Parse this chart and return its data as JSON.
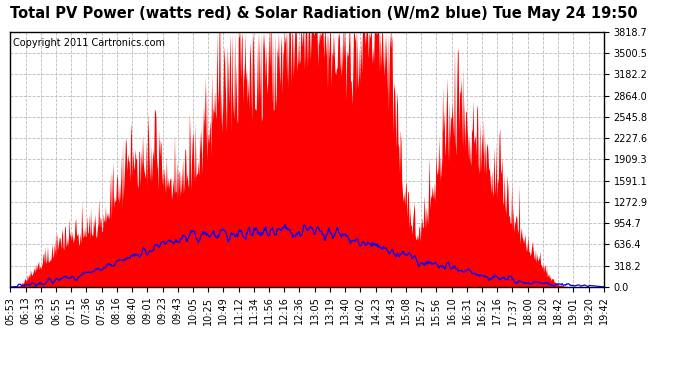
{
  "title": "Total PV Power (watts red) & Solar Radiation (W/m2 blue) Tue May 24 19:50",
  "copyright_text": "Copyright 2011 Cartronics.com",
  "y_max": 3818.7,
  "y_min": 0.0,
  "y_ticks": [
    0.0,
    318.2,
    636.4,
    954.7,
    1272.9,
    1591.1,
    1909.3,
    2227.6,
    2545.8,
    2864.0,
    3182.2,
    3500.5,
    3818.7
  ],
  "x_labels": [
    "05:53",
    "06:13",
    "06:33",
    "06:55",
    "07:15",
    "07:36",
    "07:56",
    "08:16",
    "08:40",
    "09:01",
    "09:23",
    "09:43",
    "10:05",
    "10:25",
    "10:49",
    "11:12",
    "11:34",
    "11:56",
    "12:16",
    "12:36",
    "13:05",
    "13:19",
    "13:40",
    "14:02",
    "14:23",
    "14:43",
    "15:08",
    "15:27",
    "15:56",
    "16:10",
    "16:31",
    "16:52",
    "17:16",
    "17:37",
    "18:00",
    "18:20",
    "18:42",
    "19:01",
    "19:20",
    "19:42"
  ],
  "red_fill_color": "#FF0000",
  "blue_line_color": "#0000FF",
  "background_color": "#FFFFFF",
  "grid_color": "#BBBBBB",
  "title_fontsize": 10.5,
  "copyright_fontsize": 7,
  "tick_fontsize": 7,
  "border_color": "#000000"
}
